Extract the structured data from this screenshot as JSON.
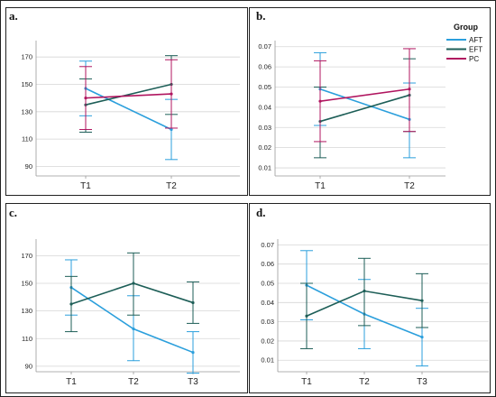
{
  "legend": {
    "title": "Group",
    "entries": [
      {
        "name": "AFT",
        "color": "#2b9fdc"
      },
      {
        "name": "EFT",
        "color": "#1d5e57"
      },
      {
        "name": "PC",
        "color": "#b0155f"
      }
    ]
  },
  "chart_data": [
    {
      "panel": "a.",
      "type": "line",
      "categories": [
        "T1",
        "T2"
      ],
      "ylim": [
        83,
        182
      ],
      "yticks": [
        "90",
        "110",
        "130",
        "150",
        "170"
      ],
      "grid": true,
      "series": [
        {
          "name": "AFT",
          "color": "#2b9fdc",
          "values": [
            147,
            117
          ],
          "ci_low": [
            127,
            95
          ],
          "ci_high": [
            167,
            139
          ]
        },
        {
          "name": "EFT",
          "color": "#1d5e57",
          "values": [
            135,
            150
          ],
          "ci_low": [
            115,
            128
          ],
          "ci_high": [
            154,
            171
          ]
        },
        {
          "name": "PC",
          "color": "#b0155f",
          "values": [
            140,
            143
          ],
          "ci_low": [
            117,
            118
          ],
          "ci_high": [
            163,
            168
          ]
        }
      ]
    },
    {
      "panel": "b.",
      "type": "line",
      "categories": [
        "T1",
        "T2"
      ],
      "ylim": [
        0.006,
        0.073
      ],
      "yticks": [
        "0.01",
        "0.02",
        "0.03",
        "0.04",
        "0.05",
        "0.06",
        "0.07"
      ],
      "grid": true,
      "series": [
        {
          "name": "AFT",
          "color": "#2b9fdc",
          "values": [
            0.049,
            0.034
          ],
          "ci_low": [
            0.031,
            0.015
          ],
          "ci_high": [
            0.067,
            0.052
          ]
        },
        {
          "name": "EFT",
          "color": "#1d5e57",
          "values": [
            0.033,
            0.046
          ],
          "ci_low": [
            0.015,
            0.028
          ],
          "ci_high": [
            0.05,
            0.064
          ]
        },
        {
          "name": "PC",
          "color": "#b0155f",
          "values": [
            0.043,
            0.049
          ],
          "ci_low": [
            0.023,
            0.028
          ],
          "ci_high": [
            0.063,
            0.069
          ]
        }
      ]
    },
    {
      "panel": "c.",
      "type": "line",
      "categories": [
        "T1",
        "T2",
        "T3"
      ],
      "ylim": [
        86,
        182
      ],
      "yticks": [
        "90",
        "110",
        "130",
        "150",
        "170"
      ],
      "grid": true,
      "series": [
        {
          "name": "AFT",
          "color": "#2b9fdc",
          "values": [
            147,
            117,
            100
          ],
          "ci_low": [
            127,
            94,
            85
          ],
          "ci_high": [
            167,
            141,
            115
          ]
        },
        {
          "name": "EFT",
          "color": "#1d5e57",
          "values": [
            135,
            150,
            136
          ],
          "ci_low": [
            115,
            127,
            121
          ],
          "ci_high": [
            155,
            172,
            151
          ]
        }
      ]
    },
    {
      "panel": "d.",
      "type": "line",
      "categories": [
        "T1",
        "T2",
        "T3"
      ],
      "ylim": [
        0.004,
        0.073
      ],
      "yticks": [
        "0.01",
        "0.02",
        "0.03",
        "0.04",
        "0.05",
        "0.06",
        "0.07"
      ],
      "grid": true,
      "series": [
        {
          "name": "AFT",
          "color": "#2b9fdc",
          "values": [
            0.049,
            0.034,
            0.022
          ],
          "ci_low": [
            0.031,
            0.016,
            0.007
          ],
          "ci_high": [
            0.067,
            0.052,
            0.037
          ]
        },
        {
          "name": "EFT",
          "color": "#1d5e57",
          "values": [
            0.033,
            0.046,
            0.041
          ],
          "ci_low": [
            0.016,
            0.028,
            0.027
          ],
          "ci_high": [
            0.05,
            0.063,
            0.055
          ]
        }
      ]
    }
  ]
}
